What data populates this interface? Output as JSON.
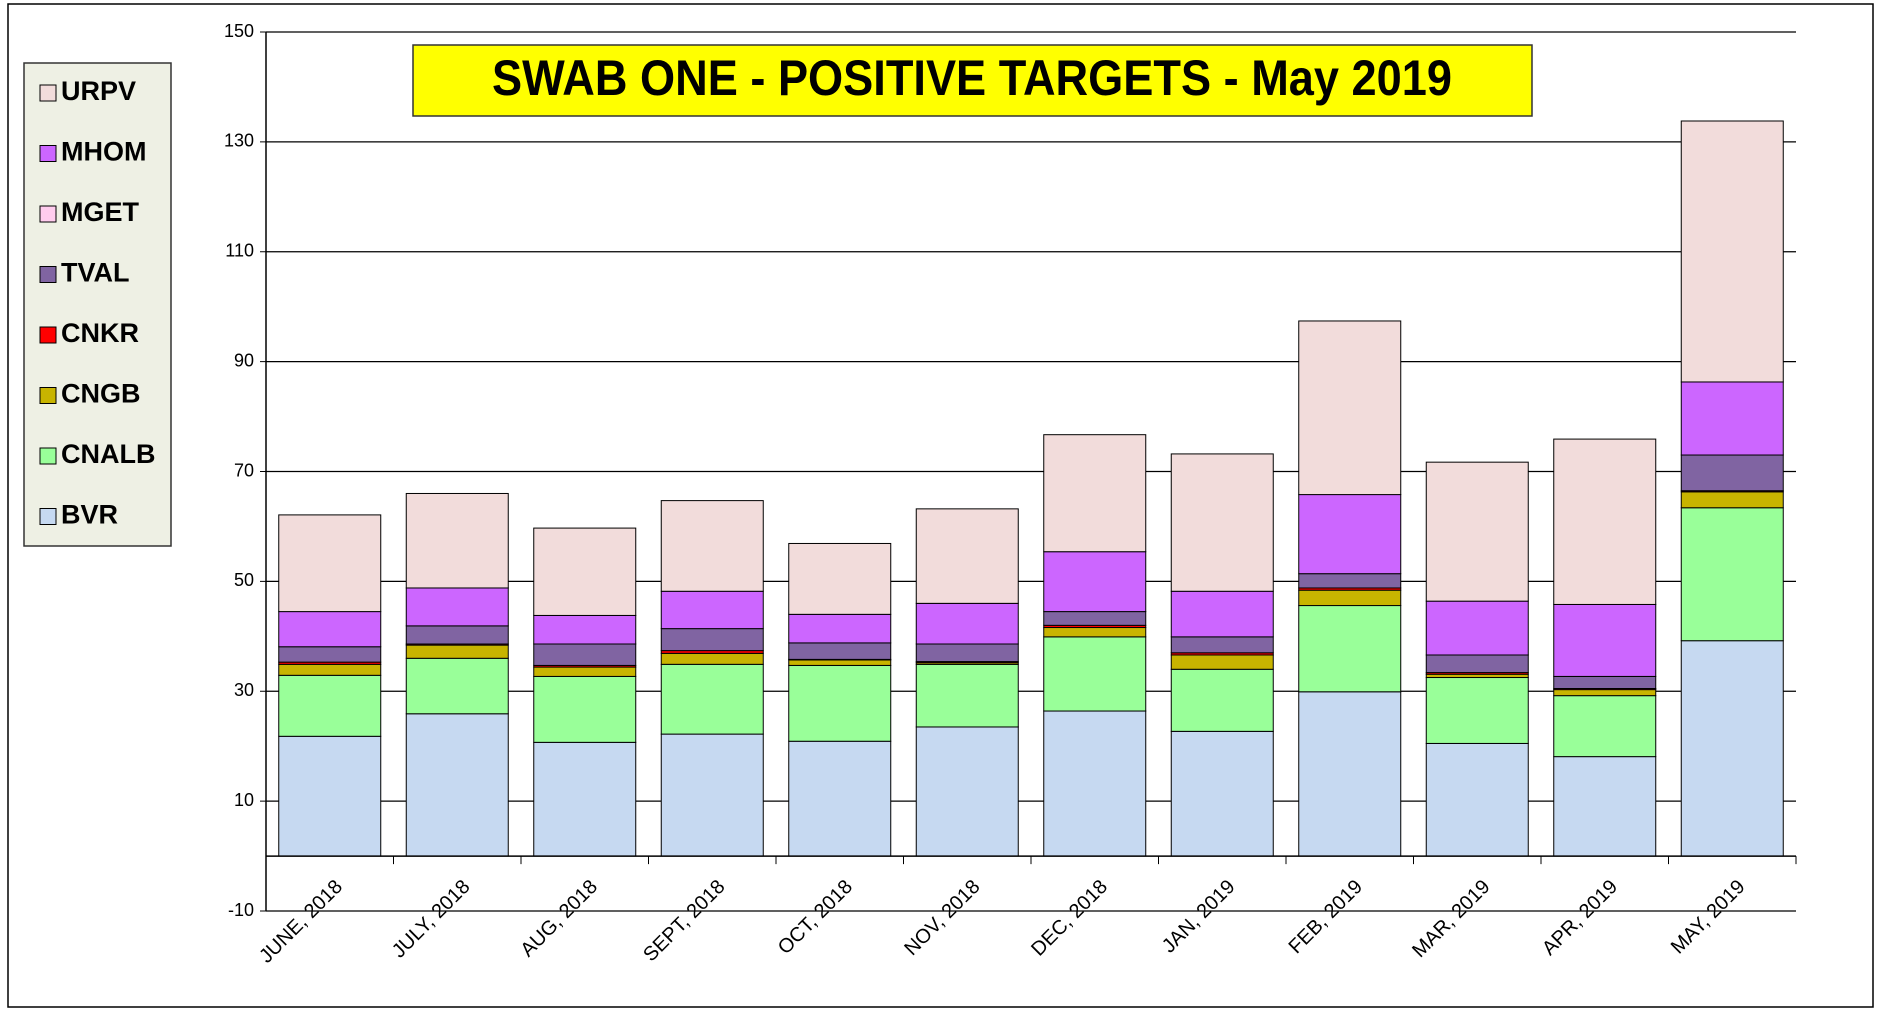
{
  "chart_data": {
    "type": "stacked-bar",
    "title": "SWAB ONE - POSITIVE TARGETS - May 2019",
    "categories": [
      "JUNE, 2018",
      "JULY, 2018",
      "AUG, 2018",
      "SEPT, 2018",
      "OCT, 2018",
      "NOV, 2018",
      "DEC, 2018",
      "JAN, 2019",
      "FEB, 2019",
      "MAR, 2019",
      "APR, 2019",
      "MAY, 2019"
    ],
    "series": [
      {
        "name": "BVR",
        "color": "#c6d9f1",
        "values": [
          21.8,
          25.9,
          20.7,
          22.2,
          20.9,
          23.5,
          26.4,
          22.7,
          29.9,
          20.5,
          18.1,
          39.2
        ]
      },
      {
        "name": "CNALB",
        "color": "#99ff99",
        "values": [
          11.1,
          10.1,
          12.0,
          12.7,
          13.8,
          11.4,
          13.5,
          11.3,
          15.7,
          12.0,
          11.1,
          24.2
        ]
      },
      {
        "name": "CNGB",
        "color": "#c8b400",
        "values": [
          2.0,
          2.4,
          1.7,
          2.0,
          1.0,
          0.3,
          1.7,
          2.6,
          2.8,
          0.6,
          1.1,
          2.9
        ]
      },
      {
        "name": "CNKR",
        "color": "#ff0000",
        "values": [
          0.4,
          0.2,
          0.3,
          0.5,
          0.1,
          0.2,
          0.4,
          0.4,
          0.4,
          0.3,
          0.2,
          0.2
        ]
      },
      {
        "name": "TVAL",
        "color": "#8064a2",
        "values": [
          2.8,
          3.3,
          3.9,
          4.0,
          3.0,
          3.2,
          2.5,
          2.9,
          2.6,
          3.2,
          2.2,
          6.5
        ]
      },
      {
        "name": "MGET",
        "color": "#ffccee",
        "values": [
          0,
          0,
          0,
          0,
          0,
          0,
          0,
          0,
          0,
          0,
          0,
          0
        ]
      },
      {
        "name": "MHOM",
        "color": "#cc66ff",
        "values": [
          6.4,
          6.9,
          5.2,
          6.8,
          5.2,
          7.4,
          10.9,
          8.3,
          14.4,
          9.8,
          13.1,
          13.3
        ]
      },
      {
        "name": "URPV",
        "color": "#f2dcdb",
        "values": [
          17.6,
          17.2,
          15.9,
          16.5,
          12.9,
          17.2,
          21.3,
          25.0,
          31.6,
          25.3,
          30.1,
          47.5
        ]
      }
    ],
    "ylim": [
      -10,
      150
    ],
    "yticks": [
      -10,
      10,
      30,
      50,
      70,
      90,
      110,
      130,
      150
    ],
    "grid": true,
    "legend": "left"
  }
}
